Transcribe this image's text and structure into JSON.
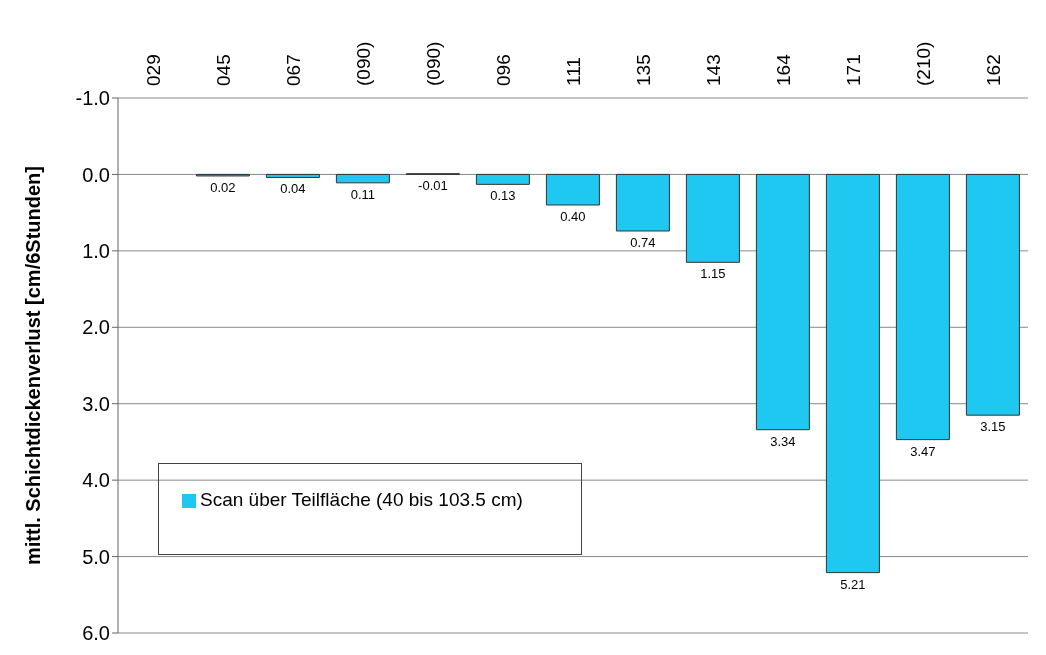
{
  "chart_data": {
    "type": "bar",
    "ylabel": "mittl. Schichtdickenverlust [cm/6Stunden]",
    "categories": [
      "029",
      "045",
      "067",
      "(090)",
      "(090)",
      "096",
      "111",
      "135",
      "143",
      "164",
      "171",
      "(210)",
      "162"
    ],
    "series": [
      {
        "name": "Scan über Teilfläche (40 bis 103.5 cm)",
        "color": "#1ec8f0",
        "values": [
          null,
          0.02,
          0.04,
          0.11,
          -0.01,
          0.13,
          0.4,
          0.74,
          1.15,
          3.34,
          5.21,
          3.47,
          3.15
        ],
        "value_labels": [
          null,
          "0.02",
          "0.04",
          "0.11",
          "-0.01",
          "0.13",
          "0.40",
          "0.74",
          "1.15",
          "3.34",
          "5.21",
          "3.47",
          "3.15"
        ]
      }
    ],
    "ylim": [
      6,
      -1
    ],
    "yticks": [
      {
        "value": -1,
        "label": "-1.0"
      },
      {
        "value": 0,
        "label": "0.0"
      },
      {
        "value": 1,
        "label": "1.0"
      },
      {
        "value": 2,
        "label": "2.0"
      },
      {
        "value": 3,
        "label": "3.0"
      },
      {
        "value": 4,
        "label": "4.0"
      },
      {
        "value": 5,
        "label": "5.0"
      },
      {
        "value": 6,
        "label": "6.0"
      }
    ],
    "grid": "y",
    "legend": "bottom left"
  }
}
